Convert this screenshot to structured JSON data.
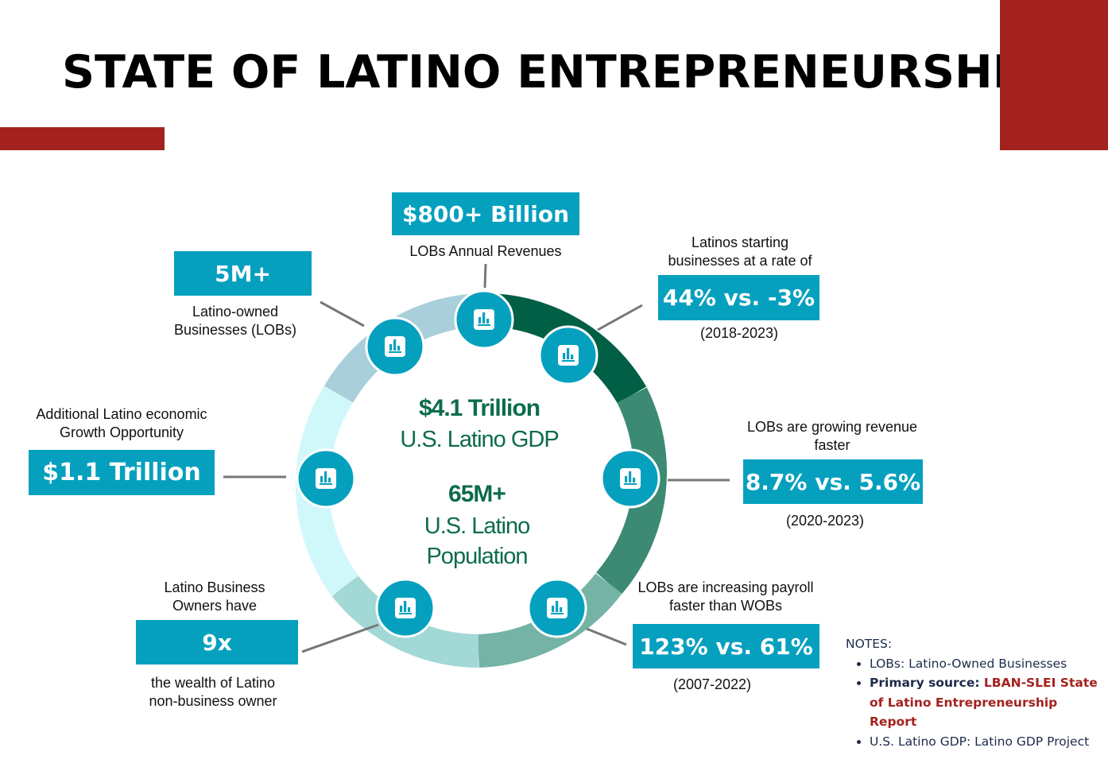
{
  "title": "STATE OF LATINO ENTREPRENEURSHIP",
  "center": {
    "gdp_value": "$4.1 Trillion",
    "gdp_label": "U.S. Latino GDP",
    "pop_value": "65M+",
    "pop_label_1": "U.S. Latino",
    "pop_label_2": "Population"
  },
  "stats": {
    "revenues": {
      "value": "$800+ Billion",
      "label": "LOBs Annual Revenues"
    },
    "businesses": {
      "value": "5M+",
      "label_1": "Latino-owned",
      "label_2": "Businesses (LOBs)"
    },
    "start_rate": {
      "label_1": "Latinos starting",
      "label_2": "businesses at a rate of",
      "value": "44% vs. -3%",
      "period": "(2018-2023)"
    },
    "opportunity": {
      "label_1": "Additional Latino economic",
      "label_2": "Growth Opportunity",
      "value": "$1.1 Trillion"
    },
    "revenue_growth": {
      "label_1": "LOBs are growing revenue",
      "label_2": "faster",
      "value": "8.7% vs. 5.6%",
      "period": "(2020-2023)"
    },
    "wealth": {
      "label_1": "Latino Business",
      "label_2": "Owners have",
      "value": "9x",
      "sub_1": "the wealth of Latino",
      "sub_2": "non-business owner"
    },
    "payroll": {
      "label_1": "LOBs are increasing payroll",
      "label_2": "faster than WOBs",
      "value": "123% vs. 61%",
      "period": "(2007-2022)"
    }
  },
  "icons": [
    "bar-chart-icon",
    "bar-chart-icon",
    "bar-chart-icon",
    "bar-chart-icon",
    "bar-chart-icon",
    "bar-chart-icon",
    "bar-chart-icon"
  ],
  "notes": {
    "heading": "NOTES:",
    "item1": " LOBs:  Latino-Owned Businesses",
    "item2_prefix": "Primary source: ",
    "item2_source": "LBAN-SLEI State of Latino Entrepreneurship Report",
    "item3": "U.S. Latino GDP: Latino GDP Project"
  },
  "colors": {
    "accent_red": "#a3221f",
    "box_teal": "#06a0bf",
    "center_green": "#0d6b4e",
    "ring_segments": [
      "#005f45",
      "#3c8a73",
      "#74b3a5",
      "#a2d8d5",
      "#d0f8fb",
      "#a9cfdb"
    ]
  }
}
